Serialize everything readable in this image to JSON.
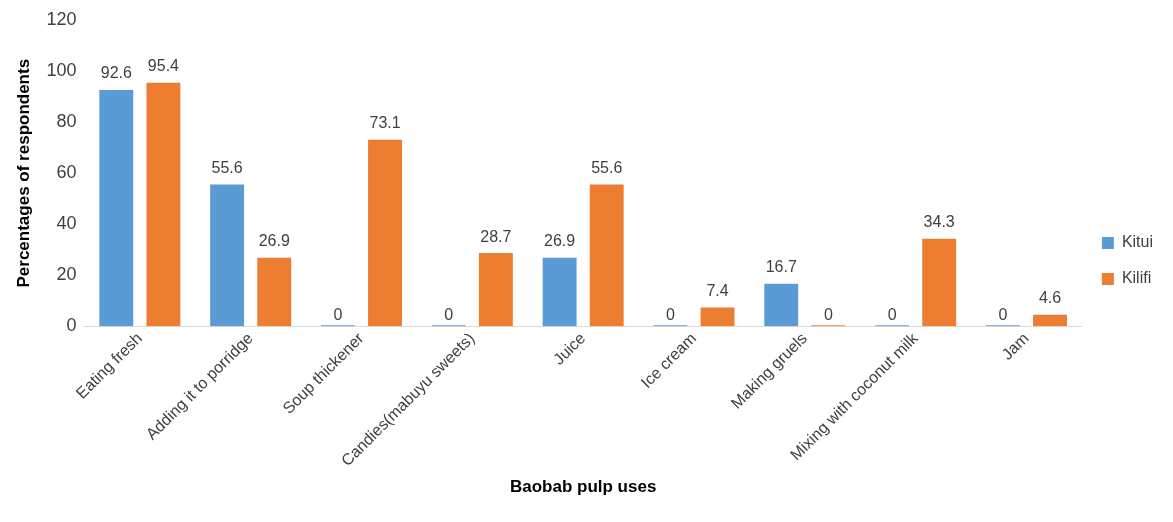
{
  "chart_data": {
    "type": "bar",
    "xlabel": "Baobab pulp uses",
    "ylabel": "Percentages of respondents",
    "categories": [
      "Eating fresh",
      "Adding it to porridge",
      "Soup thickener",
      "Candies(mabuyu sweets)",
      "Juice",
      "Ice cream",
      "Making gruels",
      "Mixing with coconut milk",
      "Jam"
    ],
    "series": [
      {
        "name": "Kitui",
        "color": "#5b9bd5",
        "values": [
          92.6,
          55.6,
          0,
          0,
          26.9,
          0,
          16.7,
          0,
          0
        ]
      },
      {
        "name": "Kilifi",
        "color": "#ed7d31",
        "values": [
          95.4,
          26.9,
          73.1,
          28.7,
          55.6,
          7.4,
          0,
          34.3,
          4.6
        ]
      }
    ],
    "ylim": [
      0,
      120
    ],
    "yticks": [
      0,
      20,
      40,
      60,
      80,
      100,
      120
    ],
    "grid": false,
    "legend": "right",
    "data_labels": true
  }
}
